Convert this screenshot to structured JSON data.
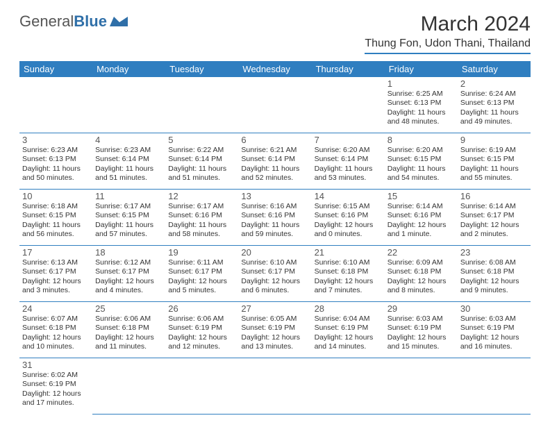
{
  "logo": {
    "part1": "General",
    "part2": "Blue"
  },
  "title": "March 2024",
  "location": "Thung Fon, Udon Thani, Thailand",
  "dayHeaders": [
    "Sunday",
    "Monday",
    "Tuesday",
    "Wednesday",
    "Thursday",
    "Friday",
    "Saturday"
  ],
  "colors": {
    "headerBg": "#2f7ec0",
    "headerText": "#ffffff",
    "rule": "#2f7ec0"
  },
  "weeks": [
    [
      null,
      null,
      null,
      null,
      null,
      {
        "n": "1",
        "sr": "6:25 AM",
        "ss": "6:13 PM",
        "dl": "11 hours and 48 minutes."
      },
      {
        "n": "2",
        "sr": "6:24 AM",
        "ss": "6:13 PM",
        "dl": "11 hours and 49 minutes."
      }
    ],
    [
      {
        "n": "3",
        "sr": "6:23 AM",
        "ss": "6:13 PM",
        "dl": "11 hours and 50 minutes."
      },
      {
        "n": "4",
        "sr": "6:23 AM",
        "ss": "6:14 PM",
        "dl": "11 hours and 51 minutes."
      },
      {
        "n": "5",
        "sr": "6:22 AM",
        "ss": "6:14 PM",
        "dl": "11 hours and 51 minutes."
      },
      {
        "n": "6",
        "sr": "6:21 AM",
        "ss": "6:14 PM",
        "dl": "11 hours and 52 minutes."
      },
      {
        "n": "7",
        "sr": "6:20 AM",
        "ss": "6:14 PM",
        "dl": "11 hours and 53 minutes."
      },
      {
        "n": "8",
        "sr": "6:20 AM",
        "ss": "6:15 PM",
        "dl": "11 hours and 54 minutes."
      },
      {
        "n": "9",
        "sr": "6:19 AM",
        "ss": "6:15 PM",
        "dl": "11 hours and 55 minutes."
      }
    ],
    [
      {
        "n": "10",
        "sr": "6:18 AM",
        "ss": "6:15 PM",
        "dl": "11 hours and 56 minutes."
      },
      {
        "n": "11",
        "sr": "6:17 AM",
        "ss": "6:15 PM",
        "dl": "11 hours and 57 minutes."
      },
      {
        "n": "12",
        "sr": "6:17 AM",
        "ss": "6:16 PM",
        "dl": "11 hours and 58 minutes."
      },
      {
        "n": "13",
        "sr": "6:16 AM",
        "ss": "6:16 PM",
        "dl": "11 hours and 59 minutes."
      },
      {
        "n": "14",
        "sr": "6:15 AM",
        "ss": "6:16 PM",
        "dl": "12 hours and 0 minutes."
      },
      {
        "n": "15",
        "sr": "6:14 AM",
        "ss": "6:16 PM",
        "dl": "12 hours and 1 minute."
      },
      {
        "n": "16",
        "sr": "6:14 AM",
        "ss": "6:17 PM",
        "dl": "12 hours and 2 minutes."
      }
    ],
    [
      {
        "n": "17",
        "sr": "6:13 AM",
        "ss": "6:17 PM",
        "dl": "12 hours and 3 minutes."
      },
      {
        "n": "18",
        "sr": "6:12 AM",
        "ss": "6:17 PM",
        "dl": "12 hours and 4 minutes."
      },
      {
        "n": "19",
        "sr": "6:11 AM",
        "ss": "6:17 PM",
        "dl": "12 hours and 5 minutes."
      },
      {
        "n": "20",
        "sr": "6:10 AM",
        "ss": "6:17 PM",
        "dl": "12 hours and 6 minutes."
      },
      {
        "n": "21",
        "sr": "6:10 AM",
        "ss": "6:18 PM",
        "dl": "12 hours and 7 minutes."
      },
      {
        "n": "22",
        "sr": "6:09 AM",
        "ss": "6:18 PM",
        "dl": "12 hours and 8 minutes."
      },
      {
        "n": "23",
        "sr": "6:08 AM",
        "ss": "6:18 PM",
        "dl": "12 hours and 9 minutes."
      }
    ],
    [
      {
        "n": "24",
        "sr": "6:07 AM",
        "ss": "6:18 PM",
        "dl": "12 hours and 10 minutes."
      },
      {
        "n": "25",
        "sr": "6:06 AM",
        "ss": "6:18 PM",
        "dl": "12 hours and 11 minutes."
      },
      {
        "n": "26",
        "sr": "6:06 AM",
        "ss": "6:19 PM",
        "dl": "12 hours and 12 minutes."
      },
      {
        "n": "27",
        "sr": "6:05 AM",
        "ss": "6:19 PM",
        "dl": "12 hours and 13 minutes."
      },
      {
        "n": "28",
        "sr": "6:04 AM",
        "ss": "6:19 PM",
        "dl": "12 hours and 14 minutes."
      },
      {
        "n": "29",
        "sr": "6:03 AM",
        "ss": "6:19 PM",
        "dl": "12 hours and 15 minutes."
      },
      {
        "n": "30",
        "sr": "6:03 AM",
        "ss": "6:19 PM",
        "dl": "12 hours and 16 minutes."
      }
    ],
    [
      {
        "n": "31",
        "sr": "6:02 AM",
        "ss": "6:19 PM",
        "dl": "12 hours and 17 minutes."
      },
      null,
      null,
      null,
      null,
      null,
      null
    ]
  ],
  "labels": {
    "sunrise": "Sunrise: ",
    "sunset": "Sunset: ",
    "daylight": "Daylight: "
  }
}
